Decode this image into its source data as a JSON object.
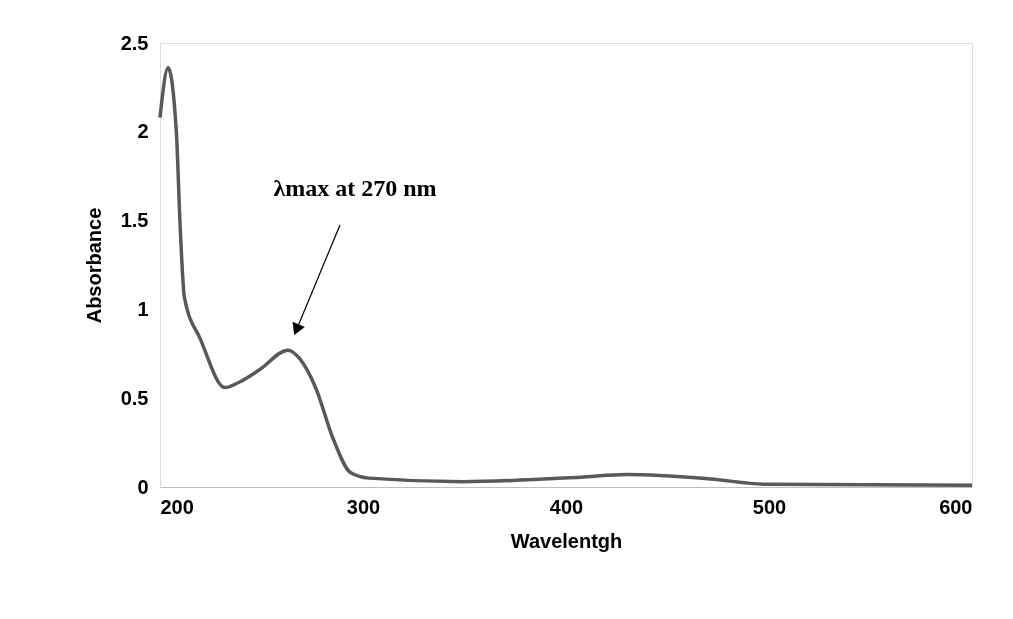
{
  "chart_data": {
    "type": "line",
    "xlabel": "Wavelentgh",
    "ylabel": "Absorbance",
    "x": [
      200,
      204,
      208,
      210,
      212,
      220,
      232,
      239,
      249,
      263,
      269,
      277,
      285,
      294,
      303,
      349,
      407,
      430,
      471,
      499,
      600
    ],
    "series": [
      {
        "color": "#595959",
        "values": [
          2.08,
          2.36,
          2.01,
          1.45,
          1.07,
          0.83,
          0.56,
          0.59,
          0.66,
          0.77,
          0.72,
          0.55,
          0.28,
          0.08,
          0.05,
          0.03,
          0.055,
          0.07,
          0.045,
          0.015,
          0.01
        ]
      }
    ],
    "xlim": [
      200,
      600
    ],
    "xticks": [
      200,
      300,
      400,
      500,
      600
    ],
    "ylim": [
      0,
      2.5
    ],
    "yticks": [
      0,
      {
        "value": 0.5,
        "label": "0.5"
      },
      1,
      {
        "value": 1.5,
        "label": "1.5"
      },
      2,
      {
        "value": 2.5,
        "label": "2.5"
      }
    ],
    "annotations": [
      "λmax at 270 nm"
    ],
    "grid": false,
    "marker": "none",
    "line_style": "solid"
  }
}
